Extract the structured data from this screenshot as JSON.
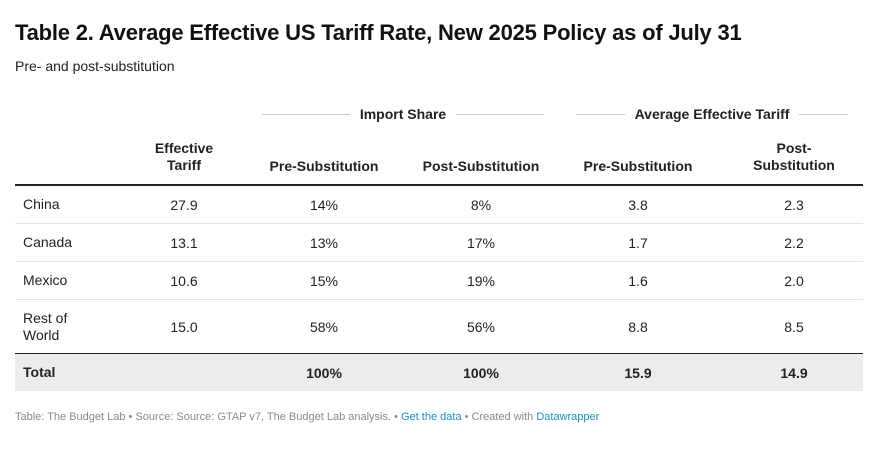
{
  "title": "Table 2. Average Effective US Tariff Rate, New 2025 Policy as of July 31",
  "subtitle": "Pre- and post-substitution",
  "groups": {
    "import_share": "Import Share",
    "avg_tariff": "Average Effective Tariff"
  },
  "columns": {
    "effective_tariff_line1": "Effective",
    "effective_tariff_line2": "Tariff",
    "import_pre": "Pre-Substitution",
    "import_post": "Post-Substitution",
    "tariff_pre": "Pre-Substitution",
    "tariff_post_line1": "Post-",
    "tariff_post_line2": "Substitution"
  },
  "rows": [
    {
      "country": "China",
      "country_line2": "",
      "effective_tariff": "27.9",
      "import_pre": "14%",
      "import_post": "8%",
      "tariff_pre": "3.8",
      "tariff_post": "2.3"
    },
    {
      "country": "Canada",
      "country_line2": "",
      "effective_tariff": "13.1",
      "import_pre": "13%",
      "import_post": "17%",
      "tariff_pre": "1.7",
      "tariff_post": "2.2"
    },
    {
      "country": "Mexico",
      "country_line2": "",
      "effective_tariff": "10.6",
      "import_pre": "15%",
      "import_post": "19%",
      "tariff_pre": "1.6",
      "tariff_post": "2.0"
    },
    {
      "country": "Rest of",
      "country_line2": "World",
      "effective_tariff": "15.0",
      "import_pre": "58%",
      "import_post": "56%",
      "tariff_pre": "8.8",
      "tariff_post": "8.5"
    }
  ],
  "total": {
    "label": "Total",
    "effective_tariff": "",
    "import_pre": "100%",
    "import_post": "100%",
    "tariff_pre": "15.9",
    "tariff_post": "14.9"
  },
  "footer": {
    "source": "Table: The Budget Lab • Source: Source: GTAP v7, The Budget Lab analysis. • ",
    "get_data": "Get the data",
    "created": " • Created with ",
    "datawrapper": "Datawrapper"
  }
}
